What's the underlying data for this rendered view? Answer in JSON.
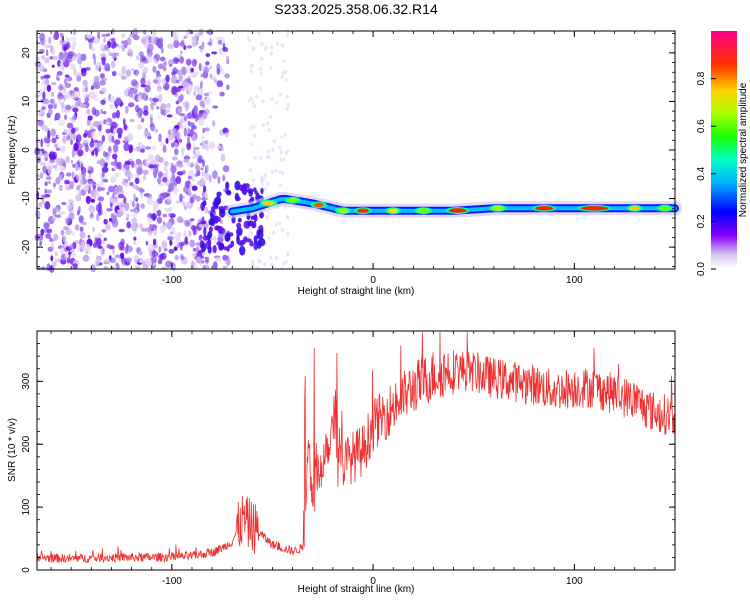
{
  "title": "S233.2025.358.06.32.R14",
  "chart_data": [
    {
      "type": "heatmap",
      "name": "spectrogram",
      "xlabel": "Height of straight line (km)",
      "ylabel": "Frequency (Hz)",
      "xlim": [
        -167,
        150
      ],
      "ylim": [
        -24.5,
        24.5
      ],
      "x_ticks": [
        "-100",
        "0",
        "100"
      ],
      "y_ticks": [
        "20",
        "10",
        "0",
        "-10",
        "-20"
      ],
      "colorbar": {
        "label": "Normalized spectral amplitude",
        "ticks": [
          "0.0",
          "0.2",
          "0.4",
          "0.6",
          "0.8"
        ],
        "range": [
          0,
          1
        ]
      },
      "description_of_content": "Broadband noise (violet speckles) for heights below about -75 km; a narrow signal band centred near -12 Hz from about -70 km to 150 km with peaks (red) near -52, -27, -5, 42, 85, 110 km.",
      "signal_track": {
        "x": [
          -75,
          -60,
          -45,
          -30,
          -15,
          0,
          20,
          40,
          60,
          80,
          100,
          120,
          140,
          150
        ],
        "freq": [
          -13,
          -12,
          -10,
          -11,
          -12.5,
          -12.5,
          -12.5,
          -12.5,
          -12,
          -12,
          -12,
          -12,
          -12,
          -12
        ]
      }
    },
    {
      "type": "line",
      "name": "snr",
      "xlabel": "Height of straight line (km)",
      "ylabel": "SNR (10 * v/v)",
      "xlim": [
        -167,
        150
      ],
      "ylim": [
        0,
        380
      ],
      "x_ticks": [
        "-100",
        "0",
        "100"
      ],
      "y_ticks": [
        "0",
        "100",
        "200",
        "300"
      ],
      "color": "#f03030",
      "series": [
        {
          "name": "SNR",
          "x": [
            -167,
            -150,
            -130,
            -110,
            -90,
            -80,
            -75,
            -70,
            -65,
            -60,
            -55,
            -50,
            -45,
            -40,
            -35,
            -32,
            -30,
            -25,
            -20,
            -15,
            -10,
            -5,
            0,
            10,
            20,
            30,
            40,
            50,
            60,
            70,
            80,
            90,
            100,
            110,
            120,
            130,
            140,
            150
          ],
          "y": [
            20,
            18,
            20,
            20,
            22,
            28,
            35,
            45,
            80,
            70,
            55,
            40,
            35,
            30,
            35,
            200,
            120,
            180,
            230,
            170,
            180,
            190,
            230,
            260,
            290,
            310,
            320,
            315,
            305,
            300,
            295,
            285,
            290,
            290,
            280,
            270,
            250,
            245
          ]
        }
      ]
    }
  ]
}
